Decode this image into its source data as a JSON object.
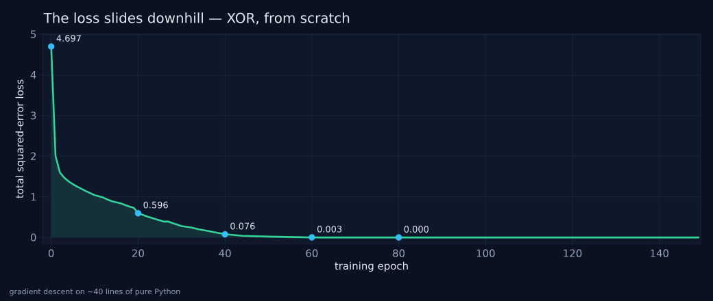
{
  "chart_data": {
    "type": "area",
    "title": "The loss slides downhill — XOR, from scratch",
    "xlabel": "training epoch",
    "ylabel": "total squared-error loss",
    "annotations": [
      "gradient descent on ~40 lines of pure Python"
    ],
    "series": [
      {
        "color": "#34d399",
        "marker": "none",
        "x": [
          0,
          1,
          2,
          3,
          4,
          5,
          6,
          8,
          10,
          11,
          12,
          13,
          14,
          16,
          18,
          19,
          20,
          22,
          24,
          26,
          27,
          28,
          30,
          32,
          34,
          36,
          38,
          40,
          44,
          50,
          55,
          60,
          80,
          149
        ],
        "values": [
          4.7,
          2.0,
          1.6,
          1.47,
          1.38,
          1.31,
          1.25,
          1.14,
          1.04,
          1.01,
          0.98,
          0.93,
          0.89,
          0.84,
          0.76,
          0.73,
          0.6,
          0.52,
          0.45,
          0.39,
          0.39,
          0.35,
          0.28,
          0.25,
          0.2,
          0.16,
          0.12,
          0.08,
          0.04,
          0.02,
          0.01,
          0.0,
          0.0,
          0.0
        ]
      },
      {
        "type": "scatter",
        "color": "#38bdf8",
        "x": [
          0,
          20,
          40,
          60,
          80
        ],
        "values": [
          4.697,
          0.596,
          0.076,
          0.003,
          0.0
        ],
        "value_labels": [
          "4.697",
          "0.596",
          "0.076",
          "0.003",
          "0.000"
        ]
      }
    ],
    "xlim": [
      -2,
      149.5
    ],
    "ylim": [
      -0.15,
      5.0
    ],
    "xticks": [
      0,
      20,
      40,
      60,
      80,
      100,
      120,
      140
    ],
    "yticks": [
      0,
      1,
      2,
      3,
      4,
      5
    ],
    "grid": true,
    "marker": "circle"
  }
}
